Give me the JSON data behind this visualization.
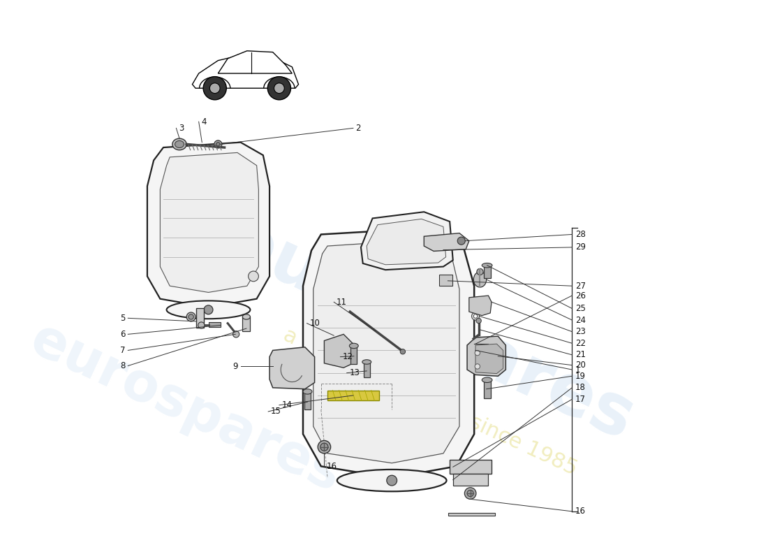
{
  "background_color": "#ffffff",
  "watermark1": "eurospares",
  "watermark2": "a passion for parts since 1985",
  "figsize": [
    11.0,
    8.0
  ],
  "dpi": 100,
  "seat_fill": "#f8f8f8",
  "seat_edge": "#222222",
  "hw_fill": "#d0d0d0",
  "hw_edge": "#333333",
  "line_color": "#333333",
  "label_color": "#111111",
  "label_fs": 8.5,
  "lw_seat": 1.6,
  "lw_hw": 1.0,
  "lw_line": 0.7
}
